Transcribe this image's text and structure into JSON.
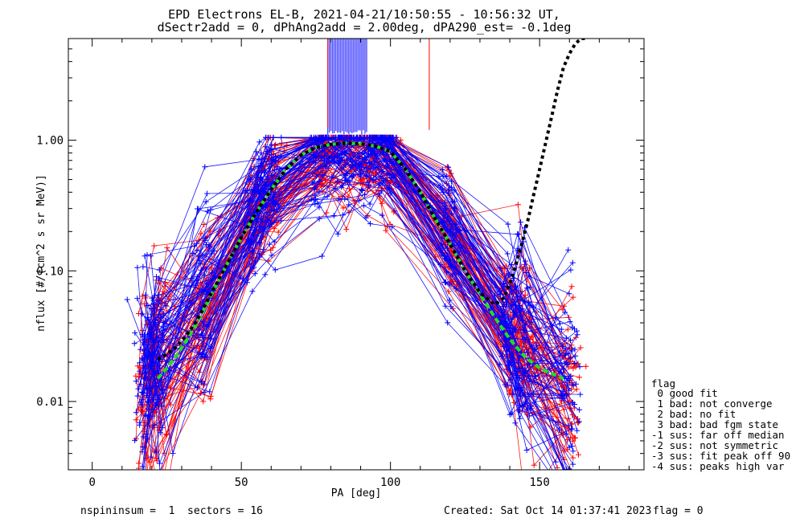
{
  "chart_data": {
    "type": "line",
    "title": "EPD Electrons EL-B, 2021-04-21/10:50:55 - 10:56:32 UT,",
    "subtitle": "dSectr2add = 0, dPhAng2add = 2.00deg, dPA290_est=  -0.1deg",
    "xlabel": "PA [deg]",
    "ylabel": "nflux [#/(cm^2 s sr MeV)]",
    "xlim": [
      -8,
      185
    ],
    "ylim": [
      0.003,
      6.0
    ],
    "yscale": "log",
    "x_ticks": [
      0,
      50,
      100,
      150
    ],
    "x_tick_labels": [
      "0",
      "50",
      "100",
      "150"
    ],
    "y_ticks": [
      0.01,
      0.1,
      1.0
    ],
    "y_tick_labels": [
      "0.01",
      "0.10",
      "1.00"
    ],
    "colors": {
      "obs_a": "#ff0000",
      "obs_b": "#0000ff",
      "fit": "#000000",
      "model": "#22dd22",
      "axis": "#000000"
    },
    "series": [
      {
        "name": "",
        "style": "black dotted fit",
        "x": [
          22,
          25,
          28,
          31,
          34,
          37,
          40,
          45,
          50,
          55,
          60,
          65,
          70,
          75,
          80,
          85,
          90,
          95,
          100,
          105,
          110,
          115,
          120,
          125,
          130,
          135,
          138,
          140,
          142,
          144,
          146,
          148,
          150,
          152,
          154,
          156,
          158,
          160,
          162,
          164,
          166
        ],
        "y": [
          0.021,
          0.023,
          0.026,
          0.031,
          0.038,
          0.05,
          0.068,
          0.11,
          0.18,
          0.28,
          0.42,
          0.6,
          0.77,
          0.88,
          0.93,
          0.95,
          0.94,
          0.9,
          0.82,
          0.6,
          0.4,
          0.25,
          0.16,
          0.1,
          0.068,
          0.055,
          0.062,
          0.08,
          0.11,
          0.16,
          0.24,
          0.38,
          0.6,
          0.95,
          1.5,
          2.4,
          3.6,
          4.6,
          5.5,
          6.0,
          6.0
        ]
      },
      {
        "name": "",
        "style": "green dashed model",
        "x": [
          22,
          25,
          28,
          31,
          34,
          37,
          40,
          45,
          50,
          55,
          60,
          65,
          70,
          75,
          80,
          85,
          90,
          95,
          100,
          105,
          110,
          115,
          120,
          125,
          130,
          135,
          140,
          145,
          150,
          155,
          158
        ],
        "y": [
          0.015,
          0.018,
          0.022,
          0.028,
          0.036,
          0.048,
          0.066,
          0.11,
          0.18,
          0.28,
          0.42,
          0.6,
          0.77,
          0.88,
          0.93,
          0.95,
          0.94,
          0.9,
          0.82,
          0.6,
          0.4,
          0.25,
          0.16,
          0.1,
          0.066,
          0.044,
          0.03,
          0.022,
          0.018,
          0.016,
          0.015
        ]
      },
      {
        "name": "",
        "style": "blue observation envelope center",
        "x": [
          16,
          20,
          24,
          30,
          38,
          46,
          55,
          60,
          70,
          78,
          85,
          92,
          98,
          105,
          112,
          120,
          128,
          135,
          142,
          150,
          158
        ],
        "y": [
          0.012,
          0.016,
          0.02,
          0.03,
          0.06,
          0.12,
          0.3,
          0.4,
          0.65,
          0.85,
          0.9,
          0.88,
          0.85,
          0.6,
          0.35,
          0.18,
          0.1,
          0.06,
          0.03,
          0.018,
          0.012
        ]
      }
    ],
    "vertical_spikes": [
      {
        "x_range": [
          79,
          92
        ],
        "color": "blue",
        "y_bottom": 1.2
      },
      {
        "x": 79,
        "color": "red",
        "y_bottom": 1.25
      },
      {
        "x": 113,
        "color": "red",
        "y_bottom": 1.2
      }
    ],
    "grid": false,
    "legend_position": "right"
  },
  "legend": {
    "title": "flag",
    "items": [
      " 0 good fit",
      " 1 bad: not converge",
      " 2 bad: no fit",
      " 3 bad: bad fgm state",
      "-1 sus: far off median",
      "-2 sus: not symmetric",
      "-3 sus: fit peak off 90",
      "-4 sus: peaks high var"
    ]
  },
  "footer": {
    "left": "nspininsum =  1  sectors = 16",
    "created": "Created: Sat Oct 14 01:37:41 2023",
    "flag": "flag = 0"
  }
}
